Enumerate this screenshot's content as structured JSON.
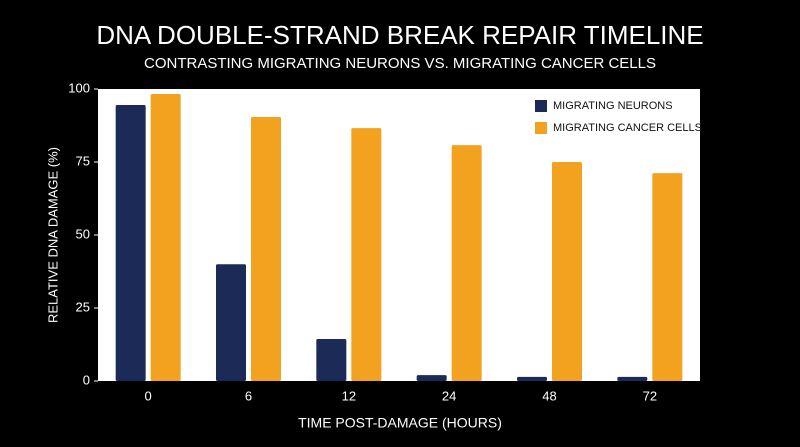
{
  "chart_data": {
    "type": "bar",
    "title": "DNA DOUBLE-STRAND BREAK REPAIR TIMELINE",
    "subtitle": "CONTRASTING MIGRATING NEURONS VS. MIGRATING CANCER CELLS",
    "x_label": "TIME POST-DAMAGE (HOURS)",
    "y_label": "RELATIVE DNA DAMAGE (%)",
    "categories": [
      "0",
      "6",
      "12",
      "24",
      "48",
      "72"
    ],
    "series": [
      {
        "name": "MIGRATING NEURONS",
        "color": "#1b2a56",
        "values": [
          94.5,
          40,
          14.4,
          2,
          1.4,
          1.4
        ]
      },
      {
        "name": "MIGRATING CANCER CELLS",
        "color": "#f2a21e",
        "values": [
          98.3,
          90.4,
          86.6,
          80.8,
          75,
          71.2
        ]
      }
    ],
    "ylim": [
      0,
      100
    ],
    "yticks": [
      0,
      25,
      50,
      75,
      100
    ],
    "grid": false,
    "legend": "top-right"
  }
}
